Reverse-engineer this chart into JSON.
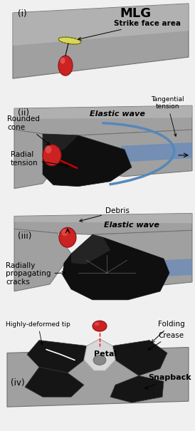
{
  "bg_color": "#f0f0f0",
  "sheet_color": "#a8a8a8",
  "sheet_light": "#c8c8c8",
  "sheet_edge": "#888888",
  "bullet_color": "#cc2222",
  "bullet_hl": "#ee6666",
  "strike_color": "#dddd44",
  "elastic_wave_color": "#5588bb",
  "blue_strip_color": "#7799cc",
  "cone_dark": "#111111",
  "cone_mid": "#2a2a2a",
  "white_color": "#ffffff",
  "petal_light": "#e0e0e0",
  "label_i": "(i)",
  "label_ii": "(ii)",
  "label_iii": "(iii)",
  "label_iv": "(iv)",
  "title_mlg": "MLG",
  "strike_label": "Strike face area",
  "elastic_label": "Elastic wave",
  "tangential_label": "Tangential\ntension",
  "rounded_label": "Rounded\ncone",
  "radial_label": "Radial\ntension",
  "debris_label": "Debris",
  "radially_label": "Radially\npropagating\ncracks",
  "highly_label": "Highly-deformed tip",
  "folding_label": "Folding",
  "crease_label": "Crease",
  "snapback_label": "Snapback",
  "petal_label": "Petal",
  "figsize": [
    2.74,
    6.05
  ],
  "dpi": 100
}
